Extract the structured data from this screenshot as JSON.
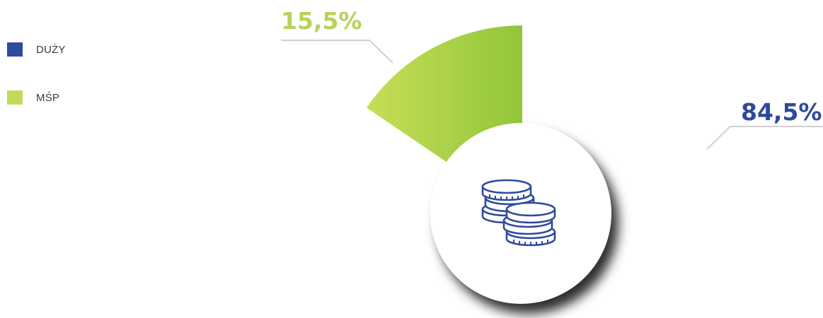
{
  "chart_data": {
    "type": "pie",
    "categories": [
      "DUŻY",
      "MŚP"
    ],
    "values": [
      84.5,
      15.5
    ],
    "value_labels": [
      "84,5%",
      "15,5%"
    ],
    "colors": [
      "#2e4a9e",
      "#9ccb3b"
    ],
    "label_colors": [
      "#2e4a9e",
      "#b5d35a"
    ],
    "legend_position": "top-left",
    "visible_slices": [
      "MŚP"
    ],
    "center_icon": "coins-icon"
  }
}
